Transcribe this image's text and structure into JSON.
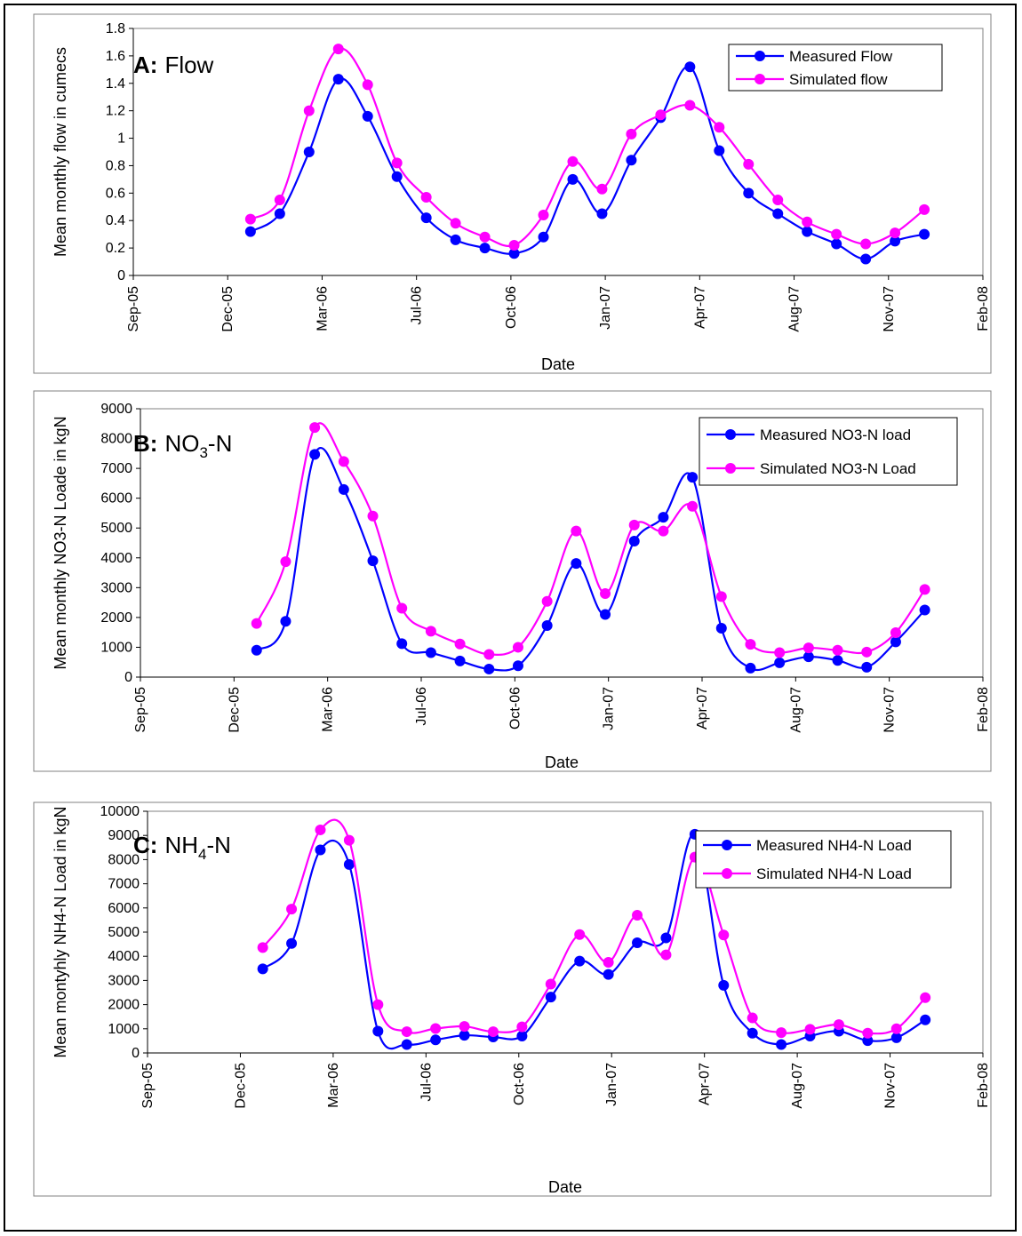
{
  "chart_data": [
    {
      "type": "line",
      "panel_letter": "A:",
      "panel_name": "Flow",
      "xlabel": "Date",
      "ylabel": "Mean monthly flow in cumecs",
      "ylim": [
        0,
        1.8
      ],
      "yticks": [
        "0",
        "0.2",
        "0.4",
        "0.6",
        "0.8",
        "1",
        "1.2",
        "1.4",
        "1.6",
        "1.8"
      ],
      "xlim": [
        "2005-09",
        "2008-02"
      ],
      "xticks": [
        "Sep-05",
        "Dec-05",
        "Mar-06",
        "Jul-06",
        "Oct-06",
        "Jan-07",
        "Apr-07",
        "Aug-07",
        "Nov-07",
        "Feb-08"
      ],
      "x": [
        "2006-01",
        "2006-02",
        "2006-03",
        "2006-04",
        "2006-05",
        "2006-06",
        "2006-07",
        "2006-08",
        "2006-09",
        "2006-10",
        "2006-11",
        "2006-12",
        "2007-01",
        "2007-02",
        "2007-03",
        "2007-04",
        "2007-05",
        "2007-06",
        "2007-07",
        "2007-08",
        "2007-09",
        "2007-10",
        "2007-11",
        "2007-12"
      ],
      "legend_position": "top-right",
      "grid": false,
      "series": [
        {
          "name": "Measured Flow",
          "color": "#0000ff",
          "values": [
            0.32,
            0.45,
            0.9,
            1.43,
            1.16,
            0.72,
            0.42,
            0.26,
            0.2,
            0.16,
            0.28,
            0.7,
            0.45,
            0.84,
            1.15,
            1.52,
            0.91,
            0.6,
            0.45,
            0.32,
            0.23,
            0.12,
            0.25,
            0.3
          ]
        },
        {
          "name": "Simulated flow",
          "color": "#ff00ff",
          "values": [
            0.41,
            0.55,
            1.2,
            1.65,
            1.39,
            0.82,
            0.57,
            0.38,
            0.28,
            0.22,
            0.44,
            0.83,
            0.63,
            1.03,
            1.17,
            1.24,
            1.08,
            0.81,
            0.55,
            0.39,
            0.3,
            0.23,
            0.31,
            0.48
          ]
        }
      ]
    },
    {
      "type": "line",
      "panel_letter": "B:",
      "panel_name": "NO",
      "panel_sub": "3",
      "panel_suffix": "-N",
      "xlabel": "Date",
      "ylabel": "Mean monthly NO3-N Loade in kgN",
      "ylim": [
        0,
        9000
      ],
      "yticks": [
        "0",
        "1000",
        "2000",
        "3000",
        "4000",
        "5000",
        "6000",
        "7000",
        "8000",
        "9000"
      ],
      "xlim": [
        "2005-09",
        "2008-02"
      ],
      "xticks": [
        "Sep-05",
        "Dec-05",
        "Mar-06",
        "Jul-06",
        "Oct-06",
        "Jan-07",
        "Apr-07",
        "Aug-07",
        "Nov-07",
        "Feb-08"
      ],
      "x": [
        "2006-01",
        "2006-02",
        "2006-03",
        "2006-04",
        "2006-05",
        "2006-06",
        "2006-07",
        "2006-08",
        "2006-09",
        "2006-10",
        "2006-11",
        "2006-12",
        "2007-01",
        "2007-02",
        "2007-03",
        "2007-04",
        "2007-05",
        "2007-06",
        "2007-07",
        "2007-08",
        "2007-09",
        "2007-10",
        "2007-11",
        "2007-12"
      ],
      "legend_position": "top-right",
      "grid": false,
      "series": [
        {
          "name": "Measured NO3-N load",
          "color": "#0000ff",
          "values": [
            900,
            1870,
            7470,
            6290,
            3900,
            1120,
            820,
            540,
            270,
            380,
            1730,
            3810,
            2100,
            4560,
            5360,
            6700,
            1640,
            300,
            480,
            680,
            560,
            330,
            1180,
            2250
          ]
        },
        {
          "name": "Simulated NO3-N Load",
          "color": "#ff00ff",
          "values": [
            1800,
            3870,
            8370,
            7230,
            5400,
            2310,
            1540,
            1110,
            760,
            1000,
            2540,
            4900,
            2800,
            5100,
            4900,
            5730,
            2700,
            1100,
            820,
            980,
            900,
            840,
            1490,
            2940
          ]
        }
      ]
    },
    {
      "type": "line",
      "panel_letter": "C:",
      "panel_name": "NH",
      "panel_sub": "4",
      "panel_suffix": "-N",
      "xlabel": "Date",
      "ylabel": "Mean montyhly NH4-N Load in kgN",
      "ylim": [
        0,
        10000
      ],
      "yticks": [
        "0",
        "1000",
        "2000",
        "3000",
        "4000",
        "5000",
        "6000",
        "7000",
        "8000",
        "9000",
        "10000"
      ],
      "xlim": [
        "2005-09",
        "2008-02"
      ],
      "xticks": [
        "Sep-05",
        "Dec-05",
        "Mar-06",
        "Jul-06",
        "Oct-06",
        "Jan-07",
        "Apr-07",
        "Aug-07",
        "Nov-07",
        "Feb-08"
      ],
      "x": [
        "2006-01",
        "2006-02",
        "2006-03",
        "2006-04",
        "2006-05",
        "2006-06",
        "2006-07",
        "2006-08",
        "2006-09",
        "2006-10",
        "2006-11",
        "2006-12",
        "2007-01",
        "2007-02",
        "2007-03",
        "2007-04",
        "2007-05",
        "2007-06",
        "2007-07",
        "2007-08",
        "2007-09",
        "2007-10",
        "2007-11",
        "2007-12"
      ],
      "legend_position": "top-right",
      "grid": false,
      "series": [
        {
          "name": "Measured NH4-N Load",
          "color": "#0000ff",
          "values": [
            3480,
            4530,
            8400,
            7800,
            900,
            350,
            540,
            730,
            660,
            700,
            2310,
            3800,
            3250,
            4560,
            4760,
            9050,
            2800,
            820,
            350,
            700,
            900,
            510,
            630,
            1370
          ]
        },
        {
          "name": "Simulated NH4-N Load",
          "color": "#ff00ff",
          "values": [
            4360,
            5950,
            9230,
            8800,
            2000,
            880,
            1010,
            1100,
            880,
            1080,
            2850,
            4900,
            3750,
            5700,
            4060,
            8100,
            4880,
            1450,
            840,
            980,
            1170,
            820,
            1000,
            2290
          ]
        }
      ]
    }
  ]
}
